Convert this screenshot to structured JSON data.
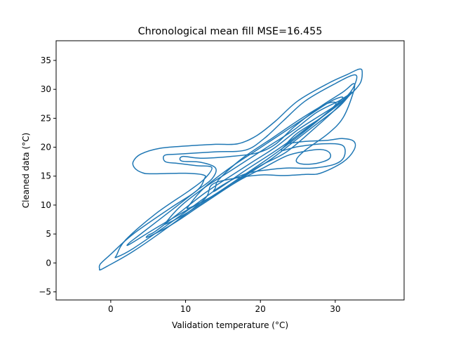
{
  "chart_data": {
    "type": "contour",
    "title": "Chronological mean fill MSE=16.455",
    "xlabel": "Validation temperature (°C)",
    "ylabel": "Cleaned data (°C)",
    "xlim": [
      -7.3,
      39.2
    ],
    "ylim": [
      -6.4,
      38.4
    ],
    "x_ticks": [
      0,
      10,
      20,
      30
    ],
    "y_ticks": [
      -5,
      0,
      5,
      10,
      15,
      20,
      25,
      30,
      35
    ],
    "grid": false,
    "line_color": "#1f77b4",
    "contour_levels": [
      {
        "name": "outer",
        "points": [
          [
            -1.4,
            -1.2
          ],
          [
            -0.5,
            -0.6
          ],
          [
            3,
            2
          ],
          [
            8,
            6.5
          ],
          [
            12.5,
            11
          ],
          [
            13.5,
            13.5
          ],
          [
            16,
            14.5
          ],
          [
            20,
            15.2
          ],
          [
            23,
            15.1
          ],
          [
            26,
            15.3
          ],
          [
            28,
            15.5
          ],
          [
            31,
            17.4
          ],
          [
            32.5,
            19.5
          ],
          [
            32.5,
            21
          ],
          [
            31,
            21.5
          ],
          [
            29,
            21.2
          ],
          [
            26,
            21
          ],
          [
            24,
            20.7
          ],
          [
            23.5,
            20.6
          ],
          [
            25,
            22.5
          ],
          [
            28,
            25
          ],
          [
            31.5,
            28.5
          ],
          [
            33.3,
            31
          ],
          [
            33.6,
            33
          ],
          [
            33.2,
            33.5
          ],
          [
            31.5,
            32.5
          ],
          [
            29,
            31
          ],
          [
            25,
            28
          ],
          [
            22,
            24.5
          ],
          [
            19.5,
            22
          ],
          [
            17,
            20.6
          ],
          [
            14,
            20.5
          ],
          [
            10,
            20.2
          ],
          [
            6.5,
            19.8
          ],
          [
            4,
            18.8
          ],
          [
            3,
            17.5
          ],
          [
            3.2,
            16.4
          ],
          [
            4.2,
            15.6
          ],
          [
            5.5,
            15.4
          ],
          [
            10,
            15.5
          ],
          [
            12.4,
            15.2
          ],
          [
            12.5,
            14.5
          ],
          [
            11.5,
            12.5
          ],
          [
            8,
            9.5
          ],
          [
            3,
            5
          ],
          [
            0,
            1.5
          ],
          [
            -1.4,
            -0.2
          ],
          [
            -1.5,
            -1
          ]
        ]
      },
      {
        "name": "level-2",
        "points": [
          [
            0.8,
            1
          ],
          [
            3,
            2.5
          ],
          [
            7.5,
            6.5
          ],
          [
            12.5,
            11.2
          ],
          [
            15,
            13.5
          ],
          [
            18,
            15.4
          ],
          [
            21,
            16.1
          ],
          [
            23.5,
            16.4
          ],
          [
            27,
            16.4
          ],
          [
            30,
            17.1
          ],
          [
            31.2,
            18.4
          ],
          [
            31,
            20.3
          ],
          [
            28.5,
            20.6
          ],
          [
            25,
            20.1
          ],
          [
            22.8,
            19.5
          ],
          [
            25,
            22.1
          ],
          [
            28.5,
            25.5
          ],
          [
            31.7,
            29
          ],
          [
            32.8,
            31.5
          ],
          [
            32.5,
            32.5
          ],
          [
            30,
            31
          ],
          [
            26,
            28
          ],
          [
            23,
            24.5
          ],
          [
            20.5,
            21.5
          ],
          [
            18,
            19.5
          ],
          [
            14,
            19.2
          ],
          [
            9,
            18.8
          ],
          [
            7.2,
            18.6
          ],
          [
            7.3,
            17.5
          ],
          [
            9,
            17.2
          ],
          [
            11.5,
            16.8
          ],
          [
            13.5,
            16.5
          ],
          [
            12.5,
            14.5
          ],
          [
            10.5,
            12.5
          ],
          [
            6,
            8.5
          ],
          [
            2,
            4
          ],
          [
            0.8,
            1.4
          ]
        ]
      },
      {
        "name": "level-3",
        "points": [
          [
            2.5,
            3.2
          ],
          [
            6,
            6
          ],
          [
            10,
            9
          ],
          [
            14,
            11.8
          ],
          [
            17.5,
            14.5
          ],
          [
            20.5,
            16.5
          ],
          [
            23.5,
            18.5
          ],
          [
            26,
            19.3
          ],
          [
            28,
            19.6
          ],
          [
            29.2,
            19.1
          ],
          [
            29.2,
            18
          ],
          [
            27.5,
            17.2
          ],
          [
            25.5,
            17.1
          ],
          [
            24.8,
            17.8
          ],
          [
            26,
            19.5
          ],
          [
            29,
            22.3
          ],
          [
            31,
            25
          ],
          [
            32.3,
            29
          ],
          [
            32.5,
            31
          ],
          [
            31,
            29.5
          ],
          [
            28,
            27
          ],
          [
            24.5,
            23.5
          ],
          [
            22,
            20.5
          ],
          [
            19.5,
            19
          ],
          [
            16,
            18.4
          ],
          [
            12,
            18.1
          ],
          [
            9.6,
            18.4
          ],
          [
            9.5,
            17.6
          ],
          [
            12,
            17.4
          ],
          [
            14,
            16.4
          ],
          [
            13.5,
            14.5
          ],
          [
            11.5,
            12.5
          ],
          [
            8,
            9
          ],
          [
            4,
            5
          ],
          [
            2.5,
            3.5
          ]
        ]
      },
      {
        "name": "level-4",
        "points": [
          [
            5,
            4.5
          ],
          [
            8,
            6.5
          ],
          [
            11.5,
            9.5
          ],
          [
            15,
            12.5
          ],
          [
            18.5,
            15.5
          ],
          [
            21.5,
            18
          ],
          [
            24.5,
            21
          ],
          [
            27.5,
            24
          ],
          [
            30.5,
            27
          ],
          [
            32.2,
            29.5
          ],
          [
            31,
            28
          ],
          [
            28,
            25.5
          ],
          [
            25,
            23
          ],
          [
            22,
            20
          ],
          [
            19,
            17.5
          ],
          [
            16,
            15
          ],
          [
            12.5,
            12
          ],
          [
            9,
            8.5
          ],
          [
            6,
            5.5
          ],
          [
            5,
            4.8
          ]
        ]
      },
      {
        "name": "level-5",
        "points": [
          [
            7.5,
            6.8
          ],
          [
            10,
            8.5
          ],
          [
            13,
            11
          ],
          [
            16.5,
            14
          ],
          [
            20,
            16.8
          ],
          [
            23.5,
            19.2
          ],
          [
            27,
            23
          ],
          [
            30,
            26.5
          ],
          [
            31.8,
            29
          ],
          [
            30.5,
            28
          ],
          [
            27.5,
            26
          ],
          [
            24.5,
            23
          ],
          [
            21.5,
            20.5
          ],
          [
            18.5,
            18
          ],
          [
            15.5,
            15.5
          ],
          [
            12.5,
            13
          ],
          [
            9.5,
            10
          ],
          [
            7.5,
            7.2
          ]
        ]
      },
      {
        "name": "level-6",
        "points": [
          [
            10.5,
            9.5
          ],
          [
            13.5,
            11.5
          ],
          [
            17,
            14.5
          ],
          [
            21,
            18
          ],
          [
            25,
            21.8
          ],
          [
            28.5,
            25.5
          ],
          [
            31,
            28.5
          ],
          [
            29.5,
            28
          ],
          [
            26.5,
            25.5
          ],
          [
            23,
            22.5
          ],
          [
            19.5,
            19.5
          ],
          [
            16,
            16.5
          ],
          [
            12.5,
            13
          ],
          [
            10.5,
            10
          ]
        ]
      },
      {
        "name": "level-7",
        "points": [
          [
            14,
            12.5
          ],
          [
            18,
            16
          ],
          [
            22.5,
            19.8
          ],
          [
            26.5,
            23.5
          ],
          [
            30,
            27.3
          ],
          [
            28.8,
            27.5
          ],
          [
            25.5,
            25
          ],
          [
            21.5,
            21.5
          ],
          [
            17.5,
            18
          ],
          [
            14.5,
            14.5
          ],
          [
            14,
            13
          ]
        ]
      }
    ]
  }
}
